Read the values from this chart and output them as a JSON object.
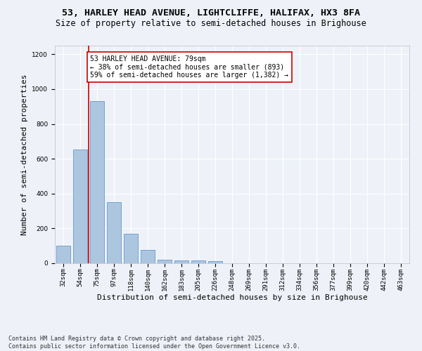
{
  "title_line1": "53, HARLEY HEAD AVENUE, LIGHTCLIFFE, HALIFAX, HX3 8FA",
  "title_line2": "Size of property relative to semi-detached houses in Brighouse",
  "xlabel": "Distribution of semi-detached houses by size in Brighouse",
  "ylabel": "Number of semi-detached properties",
  "categories": [
    "32sqm",
    "54sqm",
    "75sqm",
    "97sqm",
    "118sqm",
    "140sqm",
    "162sqm",
    "183sqm",
    "205sqm",
    "226sqm",
    "248sqm",
    "269sqm",
    "291sqm",
    "312sqm",
    "334sqm",
    "356sqm",
    "377sqm",
    "399sqm",
    "420sqm",
    "442sqm",
    "463sqm"
  ],
  "values": [
    100,
    655,
    930,
    350,
    170,
    75,
    22,
    18,
    15,
    12,
    0,
    0,
    0,
    0,
    0,
    0,
    0,
    0,
    0,
    0,
    0
  ],
  "bar_color": "#adc6e0",
  "bar_edge_color": "#6699cc",
  "property_line_color": "#cc0000",
  "annotation_text": "53 HARLEY HEAD AVENUE: 79sqm\n← 38% of semi-detached houses are smaller (893)\n59% of semi-detached houses are larger (1,382) →",
  "annotation_box_facecolor": "#ffffff",
  "annotation_box_edgecolor": "#cc0000",
  "ylim": [
    0,
    1250
  ],
  "yticks": [
    0,
    200,
    400,
    600,
    800,
    1000,
    1200
  ],
  "background_color": "#eef2f8",
  "grid_color": "#ffffff",
  "title_fontsize": 9.5,
  "subtitle_fontsize": 8.5,
  "axis_label_fontsize": 8,
  "tick_fontsize": 6.5,
  "annot_fontsize": 7,
  "footer_fontsize": 6,
  "footer_line1": "Contains HM Land Registry data © Crown copyright and database right 2025.",
  "footer_line2": "Contains public sector information licensed under the Open Government Licence v3.0."
}
